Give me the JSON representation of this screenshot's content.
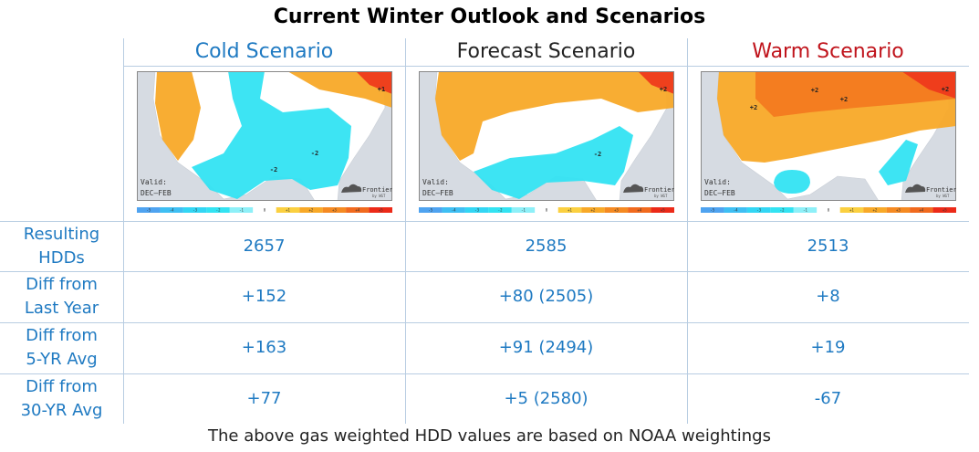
{
  "title": "Current Winter Outlook and Scenarios",
  "scenarios": [
    {
      "name": "Cold Scenario",
      "color": "#1f7ac2",
      "anomaly_labels": [
        "+1",
        "-2",
        "-2"
      ]
    },
    {
      "name": "Forecast Scenario",
      "color": "#222222",
      "anomaly_labels": [
        "+2",
        "-2"
      ]
    },
    {
      "name": "Warm Scenario",
      "color": "#c0141c",
      "anomaly_labels": [
        "+2",
        "+2",
        "+2",
        "+2"
      ]
    }
  ],
  "map_legend": {
    "valid": "Valid:",
    "period": "DEC–FEB",
    "brand": "Frontier",
    "brand_sub": "by WGT",
    "ticks": [
      "-5",
      "-4",
      "-3",
      "-2",
      "-1",
      "0",
      "+1",
      "+2",
      "+3",
      "+4",
      "+5"
    ]
  },
  "rows": [
    {
      "label": [
        "Resulting",
        "HDDs"
      ],
      "values": [
        "2657",
        "2585",
        "2513"
      ]
    },
    {
      "label": [
        "Diff from",
        "Last Year"
      ],
      "values": [
        "+152",
        "+80 (2505)",
        "+8"
      ]
    },
    {
      "label": [
        "Diff from",
        "5-YR Avg"
      ],
      "values": [
        "+163",
        "+91 (2494)",
        "+19"
      ]
    },
    {
      "label": [
        "Diff from",
        "30-YR Avg"
      ],
      "values": [
        "+77",
        "+5 (2580)",
        "-67"
      ]
    }
  ],
  "footer": "The above gas weighted HDD values are based on NOAA weightings"
}
